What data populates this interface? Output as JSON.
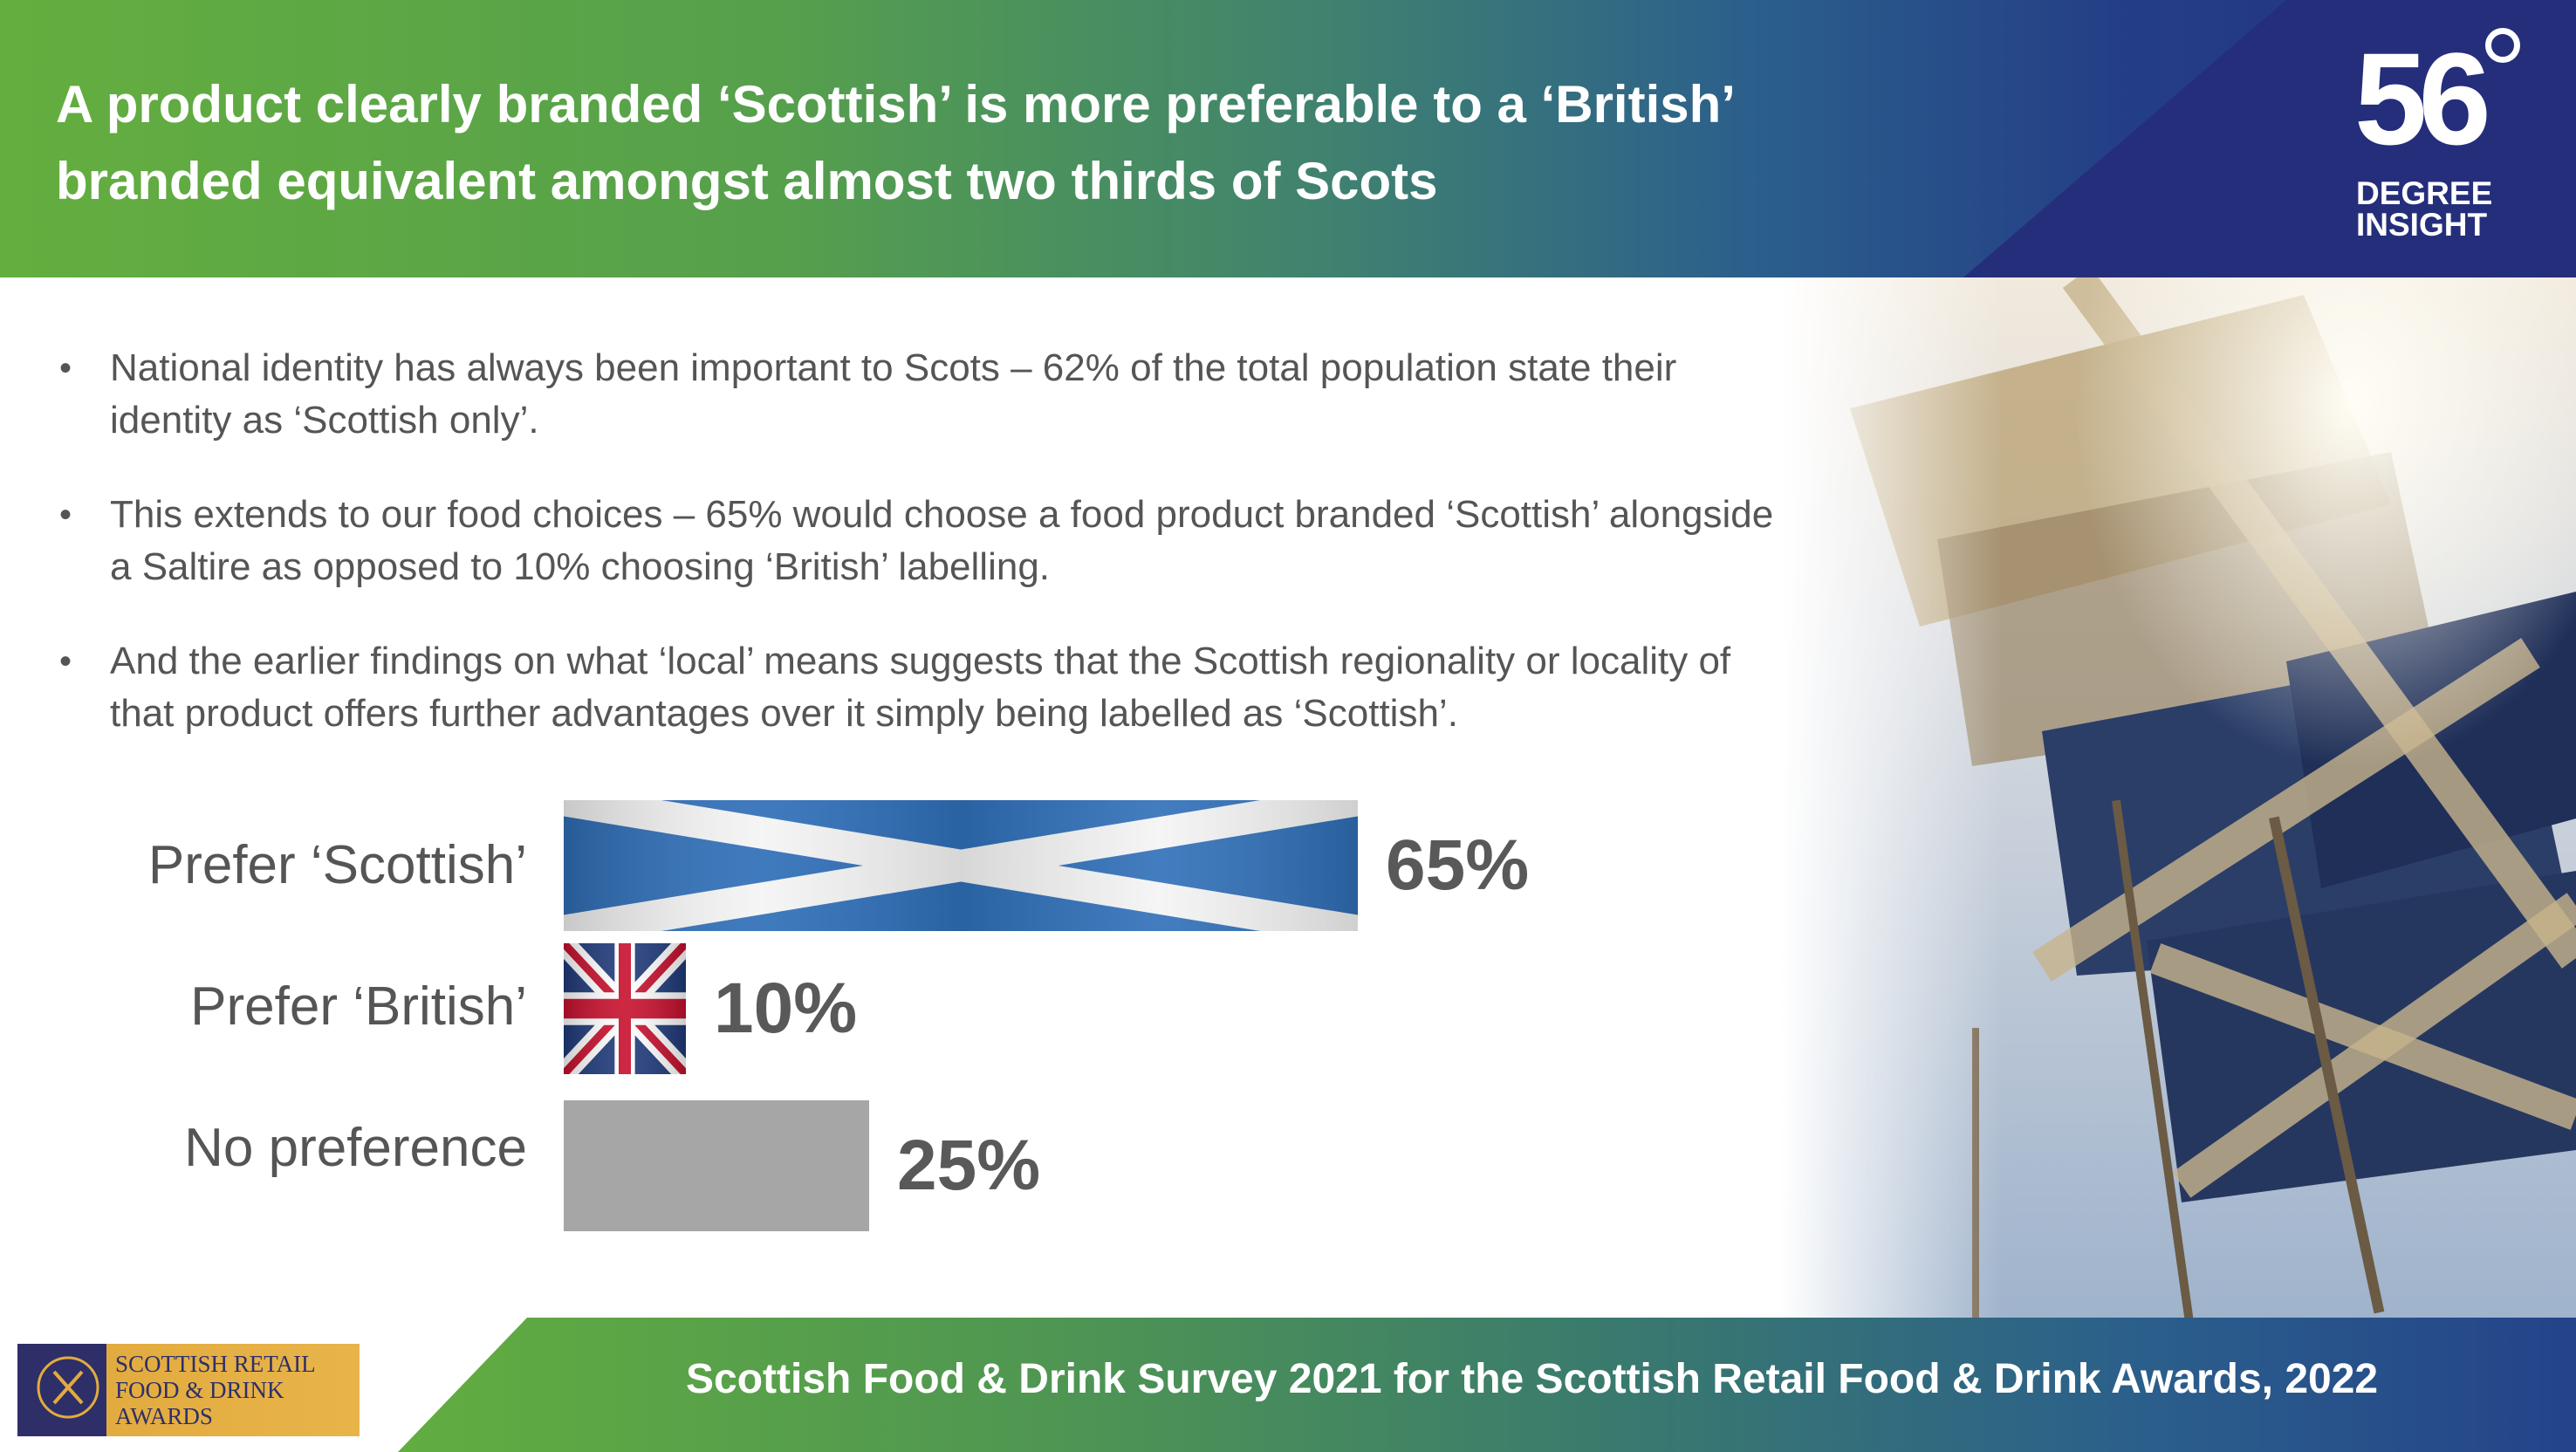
{
  "header": {
    "title_line1": "A product clearly branded ‘Scottish’ is more preferable to a ‘British’",
    "title_line2": "branded equivalent amongst almost two thirds of Scots",
    "logo_number": "56",
    "logo_line1": "DEGREE",
    "logo_line2": "INSIGHT"
  },
  "bullets": [
    {
      "marker": "•",
      "text": "National identity has always been important to Scots – 62% of the total population state their identity as ‘Scottish only’."
    },
    {
      "marker": "•",
      "text": "This extends to our food choices – 65% would choose a food product branded ‘Scottish’ alongside a Saltire as opposed to 10% choosing ‘British’ labelling."
    },
    {
      "marker": "•",
      "text": "And the earlier findings on what ‘local’ means suggests that the Scottish regionality or locality of that product offers further advantages over it simply being labelled as ‘Scottish’."
    }
  ],
  "chart_data": {
    "type": "bar",
    "orientation": "horizontal",
    "categories": [
      "Prefer ‘Scottish’",
      "Prefer ‘British’",
      "No preference"
    ],
    "values": [
      65,
      10,
      25
    ],
    "value_labels": [
      "65%",
      "10%",
      "25%"
    ],
    "bar_fills": [
      "saltire-flag",
      "union-jack-flag",
      "#a6a6a6"
    ],
    "xlim": [
      0,
      100
    ],
    "grid": false
  },
  "footer": {
    "text": "Scottish Food & Drink Survey 2021 for the Scottish Retail Food & Drink Awards, 2022",
    "award_line1": "SCOTTISH RETAIL",
    "award_line2": "FOOD & DRINK",
    "award_line3": "AWARDS"
  },
  "colors": {
    "header_green": "#64ae3f",
    "header_blue": "#252e7b",
    "text_gray": "#555555",
    "saltire_blue": "#2f6fb8",
    "no_pref_gray": "#a6a6a6"
  }
}
